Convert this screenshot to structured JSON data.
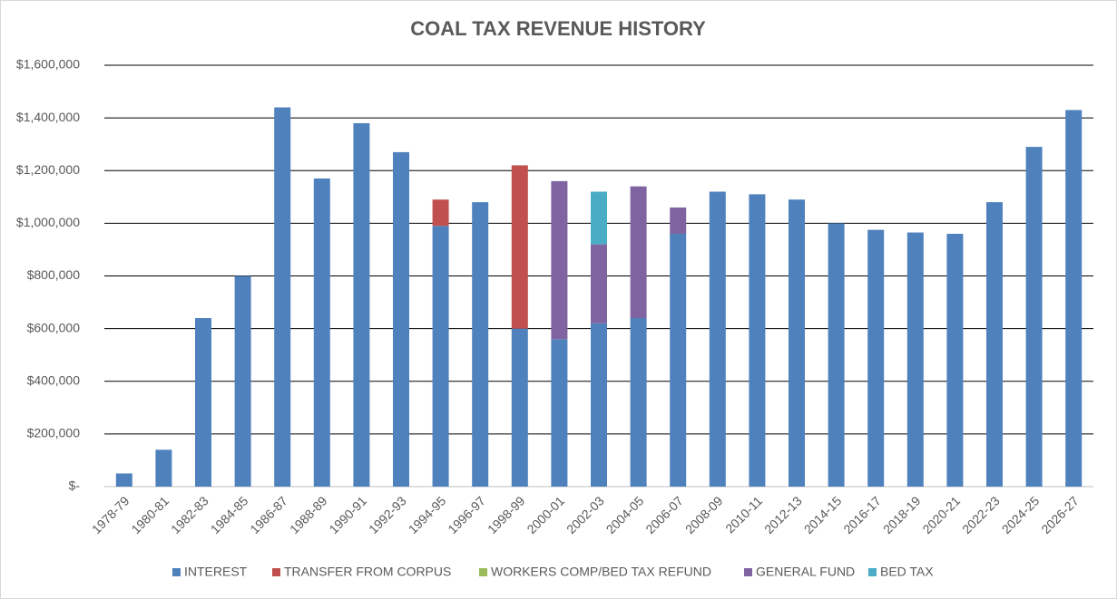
{
  "chart_data": {
    "type": "stacked_bar",
    "title": "COAL TAX REVENUE HISTORY",
    "categories": [
      "1978-79",
      "1980-81",
      "1982-83",
      "1984-85",
      "1986-87",
      "1988-89",
      "1990-91",
      "1992-93",
      "1994-95",
      "1996-97",
      "1998-99",
      "2000-01",
      "2002-03",
      "2004-05",
      "2006-07",
      "2008-09",
      "2010-11",
      "2012-13",
      "2014-15",
      "2016-17",
      "2018-19",
      "2020-21",
      "2022-23",
      "2024-25",
      "2026-27"
    ],
    "series": [
      {
        "name": "INTEREST",
        "color": "#4f81bd",
        "values": [
          50000,
          140000,
          640000,
          800000,
          1440000,
          1170000,
          1380000,
          1270000,
          990000,
          1080000,
          600000,
          560000,
          620000,
          640000,
          960000,
          1120000,
          1110000,
          1090000,
          1000000,
          975000,
          965000,
          960000,
          1080000,
          1290000,
          1430000
        ]
      },
      {
        "name": "TRANSFER FROM CORPUS",
        "color": "#c0504d",
        "values": [
          0,
          0,
          0,
          0,
          0,
          0,
          0,
          0,
          100000,
          0,
          620000,
          0,
          0,
          0,
          0,
          0,
          0,
          0,
          0,
          0,
          0,
          0,
          0,
          0,
          0
        ]
      },
      {
        "name": "WORKERS COMP/BED TAX REFUND",
        "color": "#9bbb59",
        "values": [
          0,
          0,
          0,
          0,
          0,
          0,
          0,
          0,
          0,
          0,
          0,
          0,
          0,
          0,
          0,
          0,
          0,
          0,
          0,
          0,
          0,
          0,
          0,
          0,
          0
        ]
      },
      {
        "name": "GENERAL FUND",
        "color": "#8064a2",
        "values": [
          0,
          0,
          0,
          0,
          0,
          0,
          0,
          0,
          0,
          0,
          0,
          600000,
          300000,
          500000,
          100000,
          0,
          0,
          0,
          0,
          0,
          0,
          0,
          0,
          0,
          0
        ]
      },
      {
        "name": "BED TAX",
        "color": "#4bacc6",
        "values": [
          0,
          0,
          0,
          0,
          0,
          0,
          0,
          0,
          0,
          0,
          0,
          0,
          200000,
          0,
          0,
          0,
          0,
          0,
          0,
          0,
          0,
          0,
          0,
          0,
          0
        ]
      }
    ],
    "ylim": [
      0,
      1600000
    ],
    "yticks": [
      {
        "value": 0,
        "label": "$-"
      },
      {
        "value": 200000,
        "label": "$200,000"
      },
      {
        "value": 400000,
        "label": "$400,000"
      },
      {
        "value": 600000,
        "label": "$600,000"
      },
      {
        "value": 800000,
        "label": "$800,000"
      },
      {
        "value": 1000000,
        "label": "$1,000,000"
      },
      {
        "value": 1200000,
        "label": "$1,200,000"
      },
      {
        "value": 1400000,
        "label": "$1,400,000"
      },
      {
        "value": 1600000,
        "label": "$1,600,000"
      }
    ],
    "grid": true,
    "legend": "bottom"
  }
}
